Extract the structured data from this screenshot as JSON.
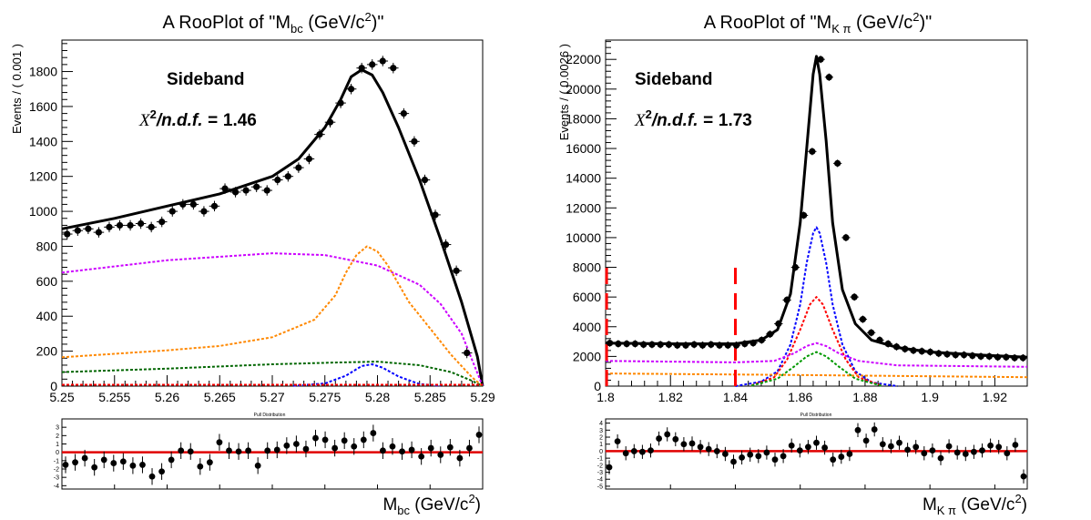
{
  "chart_data": [
    {
      "type": "line",
      "title": {
        "prefix": "A RooPlot of \"M",
        "sub": "bc",
        "mid": " (GeV/c",
        "sup": "2",
        "suffix": ")\""
      },
      "annotation": "Sideband",
      "chi2": {
        "sym": "X",
        "sup": "2",
        "rest": "/n.d.f. =",
        "value": "1.46"
      },
      "ylabel": "Events / ( 0.001 )",
      "xlabel": {
        "main": "M",
        "sub": "bc",
        "mid": " (GeV/c",
        "sup": "2",
        "end": ")"
      },
      "xlim": [
        5.25,
        5.29
      ],
      "ylim": [
        0,
        1980
      ],
      "xticks": [
        5.25,
        5.255,
        5.26,
        5.265,
        5.27,
        5.275,
        5.28,
        5.285,
        5.29
      ],
      "xtick_labels": [
        "5.25",
        "5.255",
        "5.26",
        "5.265",
        "5.27",
        "5.275",
        "5.28",
        "5.285",
        "5.29"
      ],
      "yticks": [
        0,
        200,
        400,
        600,
        800,
        1000,
        1200,
        1400,
        1600,
        1800
      ],
      "ytick_labels": [
        "0",
        "200",
        "400",
        "600",
        "800",
        "1000",
        "1200",
        "1400",
        "1600",
        "1800"
      ],
      "points": {
        "x": [
          5.2505,
          5.2515,
          5.2525,
          5.2535,
          5.2545,
          5.2555,
          5.2565,
          5.2575,
          5.2585,
          5.2595,
          5.2605,
          5.2615,
          5.2625,
          5.2635,
          5.2645,
          5.2655,
          5.2665,
          5.2675,
          5.2685,
          5.2695,
          5.2705,
          5.2715,
          5.2725,
          5.2735,
          5.2745,
          5.2755,
          5.2765,
          5.2775,
          5.2785,
          5.2795,
          5.2805,
          5.2815,
          5.2825,
          5.2835,
          5.2845,
          5.2855,
          5.2865,
          5.2875,
          5.2885
        ],
        "y": [
          870,
          890,
          900,
          880,
          910,
          920,
          920,
          930,
          910,
          940,
          1000,
          1040,
          1040,
          1000,
          1030,
          1130,
          1110,
          1120,
          1140,
          1120,
          1180,
          1200,
          1250,
          1300,
          1440,
          1510,
          1620,
          1700,
          1820,
          1840,
          1860,
          1820,
          1560,
          1400,
          1180,
          980,
          810,
          660,
          190
        ],
        "yerr": 30
      },
      "series": [
        {
          "name": "",
          "color": "#000000",
          "dash": "",
          "width": 3,
          "x": [
            5.25,
            5.255,
            5.26,
            5.265,
            5.27,
            5.2725,
            5.275,
            5.2765,
            5.2775,
            5.2785,
            5.2795,
            5.2805,
            5.282,
            5.284,
            5.286,
            5.288,
            5.2895,
            5.29
          ],
          "y": [
            900,
            960,
            1030,
            1100,
            1200,
            1300,
            1480,
            1640,
            1770,
            1810,
            1780,
            1680,
            1480,
            1180,
            840,
            480,
            170,
            0
          ]
        },
        {
          "name": "",
          "color": "#cc00ff",
          "dash": "3,2",
          "width": 2,
          "x": [
            5.25,
            5.26,
            5.27,
            5.275,
            5.28,
            5.284,
            5.286,
            5.288,
            5.289,
            5.29
          ],
          "y": [
            650,
            720,
            760,
            750,
            690,
            580,
            470,
            300,
            150,
            0
          ]
        },
        {
          "name": "",
          "color": "#ff8800",
          "dash": "3,2",
          "width": 2,
          "x": [
            5.25,
            5.26,
            5.265,
            5.27,
            5.274,
            5.276,
            5.277,
            5.278,
            5.279,
            5.28,
            5.281,
            5.283,
            5.285,
            5.287,
            5.289,
            5.29
          ],
          "y": [
            165,
            205,
            230,
            280,
            380,
            520,
            650,
            750,
            800,
            770,
            690,
            480,
            330,
            180,
            50,
            0
          ]
        },
        {
          "name": "",
          "color": "#006600",
          "dash": "3,2",
          "width": 2,
          "x": [
            5.25,
            5.26,
            5.27,
            5.276,
            5.28,
            5.284,
            5.287,
            5.289,
            5.29
          ],
          "y": [
            80,
            100,
            125,
            135,
            140,
            120,
            80,
            30,
            0
          ]
        },
        {
          "name": "",
          "color": "#0000ff",
          "dash": "3,2",
          "width": 2,
          "x": [
            5.272,
            5.275,
            5.277,
            5.2785,
            5.2795,
            5.2805,
            5.282,
            5.284,
            5.286
          ],
          "y": [
            2,
            15,
            60,
            115,
            125,
            105,
            55,
            12,
            2
          ]
        },
        {
          "name": "",
          "color": "#ff0000",
          "dash": "3,2",
          "width": 2,
          "x": [
            5.25,
            5.29
          ],
          "y": [
            8,
            8
          ]
        }
      ],
      "pull": {
        "title": "Pull Distribution",
        "ylim": [
          -4.4,
          4
        ],
        "yticks": [
          -4,
          -3,
          -2,
          -1,
          0,
          1,
          2,
          3
        ],
        "ytick_labels": [
          "-4",
          "-3",
          "-2",
          "-1",
          "0",
          "1",
          "2",
          "3"
        ],
        "y": [
          -1.5,
          -1.2,
          -0.7,
          -1.8,
          -0.9,
          -1.3,
          -1.1,
          -1.6,
          -1.5,
          -2.9,
          -2.3,
          -0.9,
          0.2,
          0.1,
          -1.7,
          -1.2,
          1.2,
          0.2,
          0.1,
          0.2,
          -1.6,
          0.2,
          0.3,
          0.8,
          1.0,
          0.4,
          1.7,
          1.5,
          0.5,
          1.4,
          0.7,
          1.5,
          2.3,
          0.2,
          0.7,
          0.1,
          0.3,
          -0.5,
          0.5,
          -0.3,
          0.6,
          -0.7,
          0.5,
          2.1
        ],
        "x": [
          5.2505,
          5.2515,
          5.2525,
          5.2535,
          5.2545,
          5.2555,
          5.2565,
          5.2575,
          5.2585,
          5.2595,
          5.2605,
          5.2615,
          5.2625,
          5.2635,
          5.2645,
          5.2655,
          5.2665,
          5.2675,
          5.2685,
          5.2695,
          5.2705,
          5.2715,
          5.2725,
          5.2735,
          5.2745,
          5.2755,
          5.2765,
          5.2775,
          5.2785,
          5.2795,
          5.2805,
          5.2815,
          5.2825,
          5.2835,
          5.2845,
          5.2855,
          5.2865,
          5.2875,
          5.2885,
          5.2875,
          5.288,
          5.2883,
          5.2886,
          5.2889
        ]
      }
    },
    {
      "type": "line",
      "title": {
        "prefix": "A RooPlot of \"M",
        "sub": "K π",
        "mid": " (GeV/c",
        "sup": "2",
        "suffix": ")\""
      },
      "annotation": "Sideband",
      "chi2": {
        "sym": "X",
        "sup": "2",
        "rest": "/n.d.f. =",
        "value": "1.73"
      },
      "ylabel": "Events / ( 0.0026 )",
      "xlabel": {
        "main": "M",
        "sub": "K π",
        "mid": " (GeV/c",
        "sup": "2",
        "end": ")"
      },
      "xlim": [
        1.8,
        1.93
      ],
      "ylim": [
        0,
        23300
      ],
      "xticks": [
        1.8,
        1.82,
        1.84,
        1.86,
        1.88,
        1.9,
        1.92
      ],
      "xtick_labels": [
        "1.8",
        "1.82",
        "1.84",
        "1.86",
        "1.88",
        "1.9",
        "1.92"
      ],
      "yticks": [
        0,
        2000,
        4000,
        6000,
        8000,
        10000,
        12000,
        14000,
        16000,
        18000,
        20000,
        22000
      ],
      "ytick_labels": [
        "0",
        "2000",
        "4000",
        "6000",
        "8000",
        "10000",
        "12000",
        "14000",
        "16000",
        "18000",
        "20000",
        "22000"
      ],
      "points": {
        "x": [
          1.8013,
          1.8039,
          1.8065,
          1.8091,
          1.8117,
          1.8143,
          1.8169,
          1.8195,
          1.8221,
          1.8247,
          1.8273,
          1.8299,
          1.8325,
          1.8351,
          1.8377,
          1.8403,
          1.8429,
          1.8455,
          1.8481,
          1.8507,
          1.8533,
          1.8559,
          1.8585,
          1.8611,
          1.8637,
          1.8663,
          1.8689,
          1.8715,
          1.8741,
          1.8767,
          1.8793,
          1.8819,
          1.8845,
          1.8871,
          1.8897,
          1.8923,
          1.8949,
          1.8975,
          1.9001,
          1.9027,
          1.9053,
          1.9079,
          1.9105,
          1.9131,
          1.9157,
          1.9183,
          1.9209,
          1.9235,
          1.9261,
          1.9287
        ],
        "y": [
          2900,
          2850,
          2850,
          2850,
          2800,
          2800,
          2800,
          2800,
          2750,
          2750,
          2800,
          2750,
          2800,
          2750,
          2750,
          2750,
          2850,
          2900,
          3100,
          3500,
          4200,
          5800,
          8000,
          11500,
          15800,
          22000,
          20800,
          15000,
          10000,
          6000,
          4500,
          3600,
          3100,
          2850,
          2650,
          2500,
          2400,
          2350,
          2300,
          2200,
          2150,
          2100,
          2100,
          2050,
          2000,
          2000,
          1950,
          1950,
          1900,
          1900
        ],
        "yerr": 250
      },
      "series": [
        {
          "name": "",
          "color": "#000000",
          "dash": "",
          "width": 3,
          "x": [
            1.8,
            1.82,
            1.84,
            1.848,
            1.853,
            1.857,
            1.86,
            1.862,
            1.864,
            1.865,
            1.866,
            1.868,
            1.87,
            1.873,
            1.877,
            1.882,
            1.89,
            1.9,
            1.915,
            1.93
          ],
          "y": [
            2900,
            2850,
            2850,
            3100,
            3800,
            6200,
            11000,
            16000,
            21000,
            22200,
            21000,
            16500,
            11000,
            6500,
            4200,
            3100,
            2600,
            2300,
            2100,
            1950
          ]
        },
        {
          "name": "",
          "color": "#0000ff",
          "dash": "3,2",
          "width": 2,
          "x": [
            1.84,
            1.848,
            1.853,
            1.857,
            1.86,
            1.862,
            1.864,
            1.865,
            1.866,
            1.868,
            1.87,
            1.873,
            1.877,
            1.882,
            1.89
          ],
          "y": [
            0,
            300,
            1000,
            2800,
            5500,
            8300,
            10300,
            10700,
            10300,
            8300,
            5500,
            2800,
            1000,
            250,
            0
          ]
        },
        {
          "name": "",
          "color": "#ff0000",
          "dash": "3,2",
          "width": 2,
          "x": [
            1.845,
            1.852,
            1.856,
            1.86,
            1.863,
            1.865,
            1.867,
            1.87,
            1.874,
            1.878,
            1.885
          ],
          "y": [
            50,
            600,
            1800,
            3800,
            5500,
            6000,
            5500,
            3800,
            1800,
            600,
            50
          ]
        },
        {
          "name": "",
          "color": "#cc00ff",
          "dash": "3,2",
          "width": 2,
          "x": [
            1.8,
            1.84,
            1.852,
            1.858,
            1.862,
            1.865,
            1.868,
            1.872,
            1.878,
            1.89,
            1.93
          ],
          "y": [
            1700,
            1600,
            1700,
            2200,
            2700,
            2900,
            2700,
            2200,
            1700,
            1400,
            1300
          ]
        },
        {
          "name": "",
          "color": "#009900",
          "dash": "3,2",
          "width": 2,
          "x": [
            1.845,
            1.853,
            1.858,
            1.862,
            1.865,
            1.868,
            1.872,
            1.877,
            1.885
          ],
          "y": [
            30,
            500,
            1300,
            2000,
            2300,
            2000,
            1300,
            500,
            30
          ]
        },
        {
          "name": "",
          "color": "#ff8800",
          "dash": "3,2",
          "width": 2,
          "x": [
            1.8,
            1.86,
            1.93
          ],
          "y": [
            850,
            750,
            600
          ]
        },
        {
          "name": "",
          "color": "#ff0000",
          "dash": "18,10",
          "width": 3,
          "x": [
            1.84,
            1.84
          ],
          "y": [
            0,
            8000
          ]
        },
        {
          "name": "",
          "color": "#ff0000",
          "dash": "18,10",
          "width": 3,
          "x": [
            1.8003,
            1.8003
          ],
          "y": [
            0,
            8000
          ]
        }
      ],
      "pull": {
        "title": "Pull Distribution",
        "ylim": [
          -5.4,
          4.6
        ],
        "yticks": [
          -5,
          -4,
          -3,
          -2,
          -1,
          0,
          1,
          2,
          3,
          4
        ],
        "ytick_labels": [
          "-5",
          "-4",
          "-3",
          "-2",
          "-1",
          "0",
          "1",
          "2",
          "3",
          "4"
        ],
        "y": [
          -2.3,
          1.4,
          -0.3,
          0.0,
          -0.1,
          0.1,
          1.8,
          2.4,
          1.7,
          1.0,
          1.1,
          0.6,
          0.3,
          0.0,
          -0.4,
          -1.5,
          -0.9,
          -0.5,
          -0.7,
          -0.2,
          -1.2,
          -0.7,
          0.8,
          0.1,
          0.6,
          1.2,
          0.5,
          -1.2,
          -0.8,
          -0.4,
          3.0,
          1.5,
          3.1,
          1.0,
          0.7,
          1.2,
          0.2,
          0.6,
          -0.3,
          0.1,
          -1.0,
          0.7,
          -0.2,
          -0.4,
          -0.1,
          0.1,
          0.8,
          0.6,
          -0.3,
          0.9,
          -3.6
        ],
        "x": [
          1.8005,
          1.8013,
          1.8039,
          1.8065,
          1.8091,
          1.8117,
          1.8143,
          1.8169,
          1.8195,
          1.8221,
          1.8247,
          1.8273,
          1.8299,
          1.8325,
          1.8351,
          1.8377,
          1.8403,
          1.8429,
          1.8455,
          1.8481,
          1.8507,
          1.8533,
          1.8559,
          1.8585,
          1.8611,
          1.8637,
          1.8663,
          1.8689,
          1.8715,
          1.8741,
          1.8767,
          1.8793,
          1.8819,
          1.8845,
          1.8871,
          1.8897,
          1.8923,
          1.8949,
          1.8975,
          1.9001,
          1.9027,
          1.9053,
          1.9079,
          1.9105,
          1.9131,
          1.9157,
          1.9183,
          1.9209,
          1.9235,
          1.9261,
          1.9287
        ]
      }
    }
  ]
}
